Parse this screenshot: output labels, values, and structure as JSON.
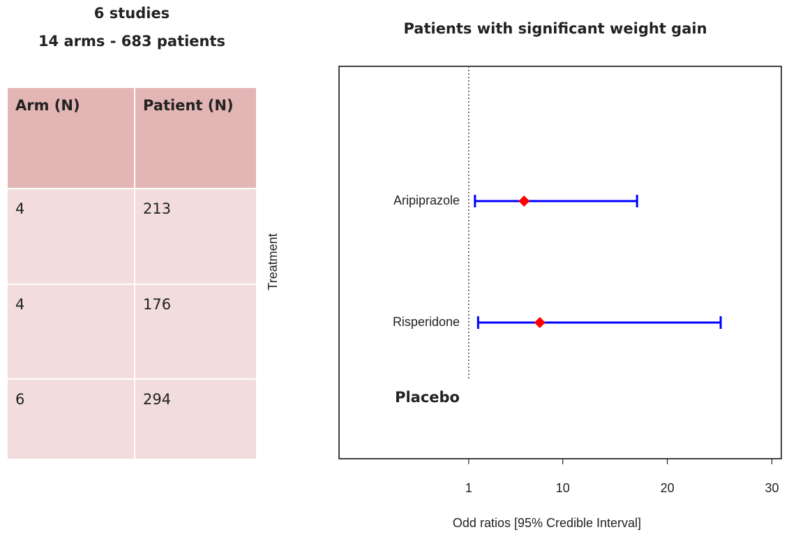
{
  "summary": {
    "line1": "6 studies",
    "line2": "14 arms - 683 patients"
  },
  "table": {
    "header": [
      "Arm (N)",
      "Patient (N)"
    ],
    "rows": [
      [
        "4",
        "213"
      ],
      [
        "4",
        "176"
      ],
      [
        "6",
        "294"
      ]
    ]
  },
  "chart_data": {
    "type": "forest",
    "title": "Patients with significant weight gain",
    "ylabel": "Treatment",
    "xlabel": "Odd ratios [95% Credible  Interval]",
    "categories": [
      "Aripiprazole",
      "Risperidone",
      "Placebo"
    ],
    "values": [
      6.3,
      7.8,
      null
    ],
    "lower": [
      1.6,
      1.9,
      null
    ],
    "upper": [
      17.1,
      25.1,
      null
    ],
    "color": "#0000ff",
    "point_color": "#ff0000",
    "xlim": [
      -11.4,
      30.9
    ],
    "xticks": [
      1,
      10,
      20,
      30
    ],
    "reference_line": 1
  }
}
